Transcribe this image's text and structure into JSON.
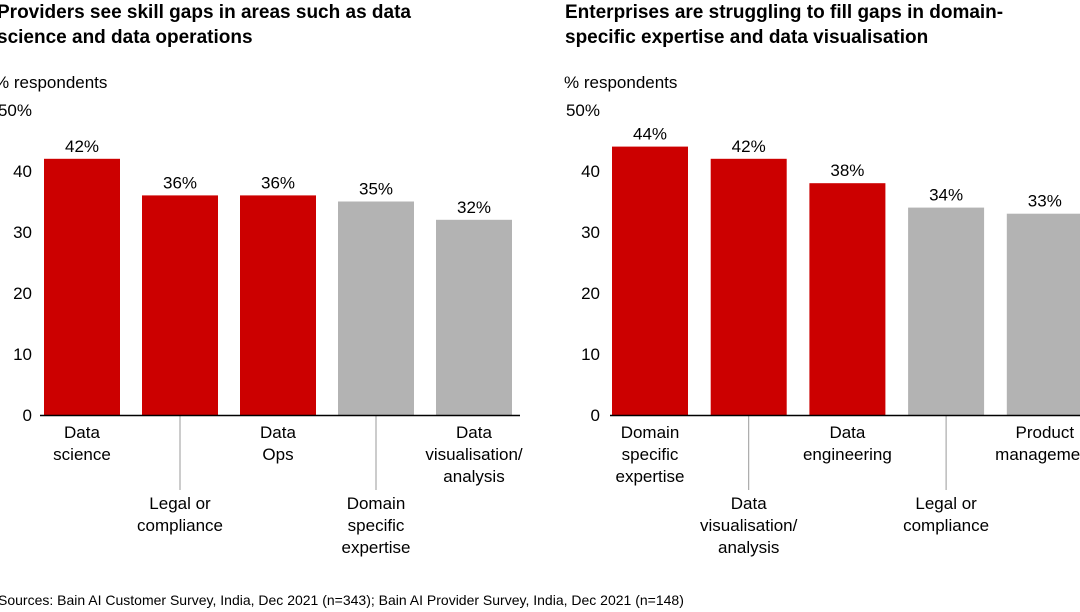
{
  "chart_data": [
    {
      "type": "bar",
      "title": "Providers see skill gaps in areas such as data science and data operations",
      "ylabel": "% respondents",
      "ylim": [
        0,
        50
      ],
      "yticks": [
        "0",
        "10",
        "20",
        "30",
        "40",
        "50%"
      ],
      "categories": [
        [
          "Data",
          "science"
        ],
        [
          "Legal or",
          "compliance"
        ],
        [
          "Data",
          "Ops"
        ],
        [
          "Domain",
          "specific",
          "expertise"
        ],
        [
          "Data",
          "visualisation/",
          "analysis"
        ]
      ],
      "values": [
        42,
        36,
        36,
        35,
        32
      ],
      "data_labels": [
        "42%",
        "36%",
        "36%",
        "35%",
        "32%"
      ],
      "highlighted": [
        true,
        true,
        true,
        false,
        false
      ],
      "grid": false
    },
    {
      "type": "bar",
      "title": "Enterprises are struggling to fill gaps in domain-specific expertise and data visualisation",
      "ylabel": "% respondents",
      "ylim": [
        0,
        50
      ],
      "yticks": [
        "0",
        "10",
        "20",
        "30",
        "40",
        "50%"
      ],
      "categories": [
        [
          "Domain",
          "specific",
          "expertise"
        ],
        [
          "Data",
          "visualisation/",
          "analysis"
        ],
        [
          "Data",
          "engineering"
        ],
        [
          "Legal or",
          "compliance"
        ],
        [
          "Product",
          "management"
        ]
      ],
      "values": [
        44,
        42,
        38,
        34,
        33
      ],
      "data_labels": [
        "44%",
        "42%",
        "38%",
        "34%",
        "33%"
      ],
      "highlighted": [
        true,
        true,
        true,
        false,
        false
      ],
      "grid": false
    }
  ],
  "titles": {
    "left": [
      "Providers see skill gaps in areas such as data",
      "science and data operations"
    ],
    "right": [
      "Enterprises are struggling to fill gaps in domain-",
      "specific expertise and data visualisation"
    ]
  },
  "colors": {
    "highlight": "#cc0000",
    "other": "#b3b3b3",
    "axis": "#000000",
    "leader": "#999999"
  },
  "source": "Sources: Bain AI Customer Survey, India, Dec 2021 (n=343); Bain AI Provider Survey, India, Dec 2021 (n=148)"
}
